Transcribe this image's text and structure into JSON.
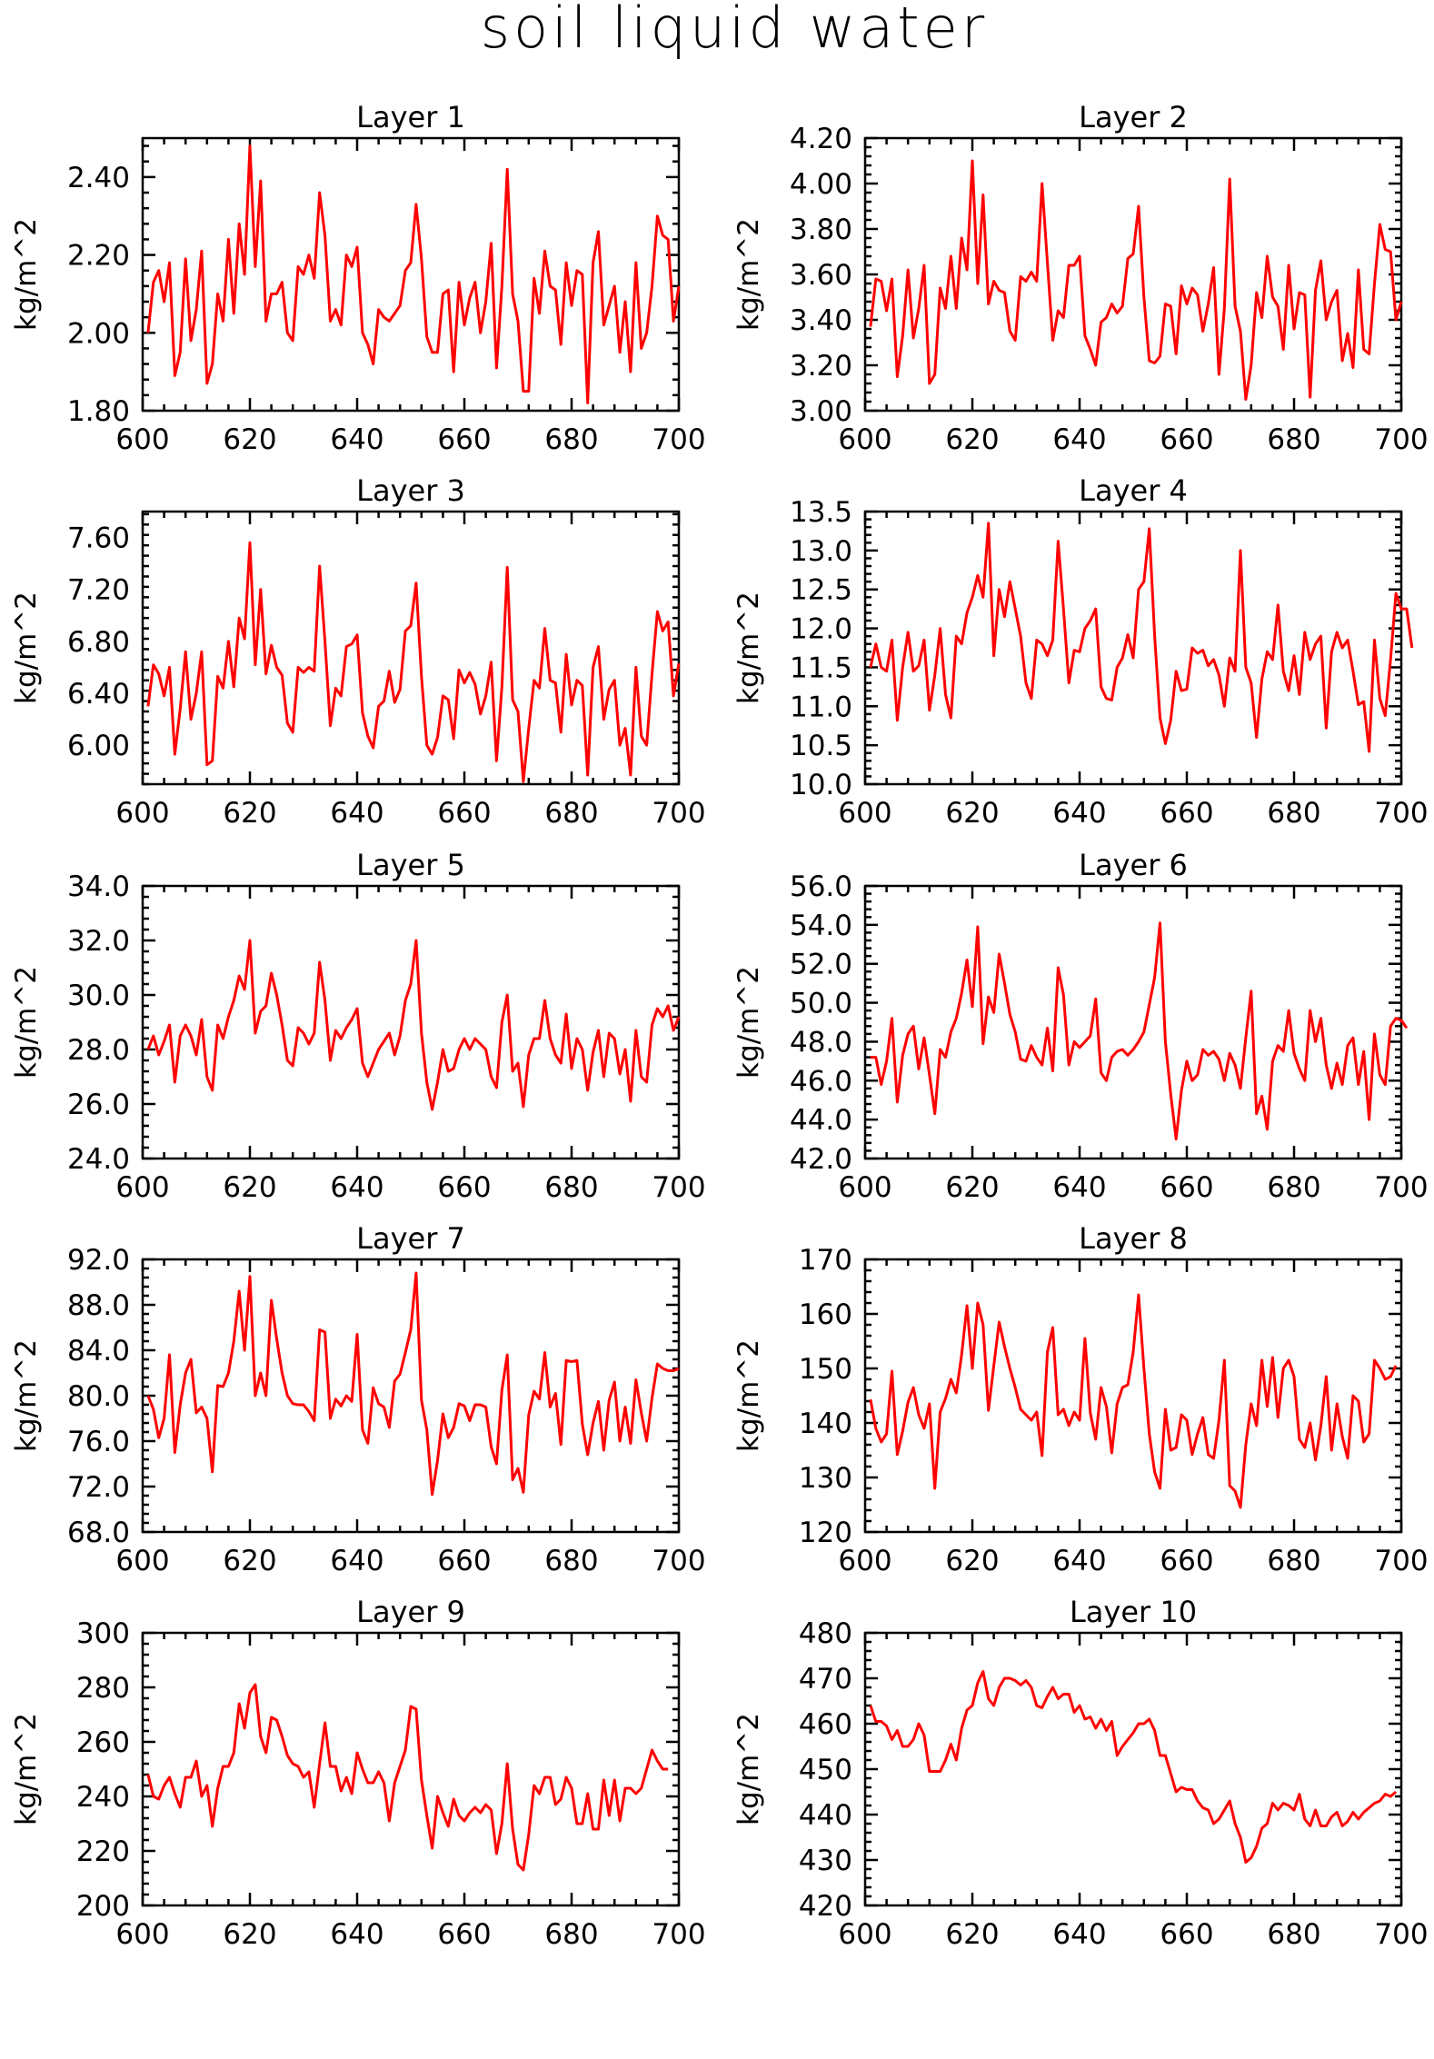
{
  "figure": {
    "title": "soil liquid water"
  },
  "chart_data": [
    {
      "type": "line",
      "title": "Layer 1",
      "ylabel": "kg/m^2",
      "xlim": [
        600,
        700
      ],
      "ylim": [
        1.8,
        2.5
      ],
      "xticks": [
        "600",
        "620",
        "640",
        "660",
        "680",
        "700"
      ],
      "yticks": [
        "1.80",
        "2.00",
        "2.20",
        "2.40"
      ],
      "grid": false,
      "series_color": "#ff0000",
      "x0": 601,
      "values": [
        2.0,
        2.13,
        2.16,
        2.08,
        2.18,
        1.89,
        1.95,
        2.19,
        1.98,
        2.06,
        2.21,
        1.87,
        1.92,
        2.1,
        2.03,
        2.24,
        2.05,
        2.28,
        2.15,
        2.48,
        2.17,
        2.39,
        2.03,
        2.1,
        2.1,
        2.13,
        2.0,
        1.98,
        2.17,
        2.15,
        2.2,
        2.14,
        2.36,
        2.25,
        2.03,
        2.06,
        2.02,
        2.2,
        2.17,
        2.22,
        2.0,
        1.97,
        1.92,
        2.06,
        2.04,
        2.03,
        2.05,
        2.07,
        2.16,
        2.18,
        2.33,
        2.19,
        1.99,
        1.95,
        1.95,
        2.1,
        2.11,
        1.9,
        2.13,
        2.02,
        2.09,
        2.13,
        2.0,
        2.08,
        2.23,
        1.91,
        2.12,
        2.42,
        2.1,
        2.03,
        1.85,
        1.85,
        2.14,
        2.05,
        2.21,
        2.12,
        2.11,
        1.97,
        2.18,
        2.07,
        2.16,
        2.15,
        1.82,
        2.18,
        2.26,
        2.02,
        2.07,
        2.12,
        1.95,
        2.08,
        1.9,
        2.18,
        1.96,
        2.0,
        2.12,
        2.3,
        2.25,
        2.24,
        2.03,
        2.12
      ]
    },
    {
      "type": "line",
      "title": "Layer 2",
      "ylabel": "kg/m^2",
      "xlim": [
        600,
        700
      ],
      "ylim": [
        3.0,
        4.2
      ],
      "xticks": [
        "600",
        "620",
        "640",
        "660",
        "680",
        "700"
      ],
      "yticks": [
        "3.00",
        "3.20",
        "3.40",
        "3.60",
        "3.80",
        "4.00",
        "4.20"
      ],
      "grid": false,
      "series_color": "#ff0000",
      "x0": 601,
      "values": [
        3.37,
        3.58,
        3.57,
        3.44,
        3.58,
        3.15,
        3.33,
        3.62,
        3.32,
        3.45,
        3.64,
        3.12,
        3.16,
        3.54,
        3.45,
        3.68,
        3.45,
        3.76,
        3.62,
        4.1,
        3.56,
        3.95,
        3.47,
        3.57,
        3.53,
        3.52,
        3.35,
        3.31,
        3.59,
        3.57,
        3.61,
        3.57,
        4.0,
        3.65,
        3.31,
        3.44,
        3.41,
        3.64,
        3.64,
        3.68,
        3.33,
        3.27,
        3.2,
        3.39,
        3.41,
        3.47,
        3.43,
        3.46,
        3.67,
        3.69,
        3.9,
        3.5,
        3.22,
        3.21,
        3.24,
        3.47,
        3.46,
        3.25,
        3.55,
        3.47,
        3.54,
        3.51,
        3.35,
        3.47,
        3.63,
        3.16,
        3.45,
        4.02,
        3.46,
        3.35,
        3.05,
        3.2,
        3.52,
        3.41,
        3.68,
        3.5,
        3.46,
        3.27,
        3.64,
        3.36,
        3.52,
        3.51,
        3.06,
        3.53,
        3.66,
        3.4,
        3.48,
        3.53,
        3.22,
        3.34,
        3.19,
        3.62,
        3.27,
        3.25,
        3.56,
        3.82,
        3.71,
        3.7,
        3.4,
        3.48
      ]
    },
    {
      "type": "line",
      "title": "Layer 3",
      "ylabel": "kg/m^2",
      "xlim": [
        600,
        700
      ],
      "ylim": [
        5.7,
        7.8
      ],
      "xticks": [
        "600",
        "620",
        "640",
        "660",
        "680",
        "700"
      ],
      "yticks": [
        "6.00",
        "6.40",
        "6.80",
        "7.20",
        "7.60"
      ],
      "grid": false,
      "series_color": "#ff0000",
      "x0": 601,
      "values": [
        6.3,
        6.62,
        6.55,
        6.38,
        6.6,
        5.93,
        6.28,
        6.72,
        6.2,
        6.4,
        6.72,
        5.85,
        5.88,
        6.53,
        6.44,
        6.8,
        6.45,
        6.98,
        6.82,
        7.56,
        6.62,
        7.2,
        6.55,
        6.77,
        6.6,
        6.54,
        6.17,
        6.1,
        6.6,
        6.56,
        6.6,
        6.57,
        7.38,
        6.8,
        6.15,
        6.44,
        6.38,
        6.76,
        6.78,
        6.85,
        6.25,
        6.07,
        5.98,
        6.3,
        6.34,
        6.57,
        6.33,
        6.43,
        6.88,
        6.92,
        7.25,
        6.53,
        6.0,
        5.93,
        6.06,
        6.38,
        6.35,
        6.05,
        6.58,
        6.48,
        6.56,
        6.47,
        6.24,
        6.38,
        6.64,
        5.88,
        6.45,
        7.37,
        6.35,
        6.26,
        5.72,
        6.13,
        6.5,
        6.44,
        6.9,
        6.5,
        6.48,
        6.1,
        6.7,
        6.31,
        6.5,
        6.46,
        5.77,
        6.6,
        6.76,
        6.2,
        6.43,
        6.5,
        6.0,
        6.13,
        5.77,
        6.6,
        6.07,
        6.0,
        6.55,
        7.03,
        6.88,
        6.95,
        6.38,
        6.63
      ]
    },
    {
      "type": "line",
      "title": "Layer 4",
      "ylabel": "kg/m^2",
      "xlim": [
        600,
        700
      ],
      "ylim": [
        10.0,
        13.5
      ],
      "xticks": [
        "600",
        "620",
        "640",
        "660",
        "680",
        "700"
      ],
      "yticks": [
        "10.0",
        "10.5",
        "11.0",
        "11.5",
        "12.0",
        "12.5",
        "13.0",
        "13.5"
      ],
      "grid": false,
      "series_color": "#ff0000",
      "x0": 601,
      "values": [
        11.5,
        11.8,
        11.5,
        11.45,
        11.85,
        10.82,
        11.5,
        11.95,
        11.45,
        11.52,
        11.85,
        10.95,
        11.4,
        12.0,
        11.15,
        10.85,
        11.9,
        11.8,
        12.2,
        12.4,
        12.68,
        12.4,
        13.35,
        11.65,
        12.5,
        12.15,
        12.6,
        12.25,
        11.9,
        11.3,
        11.1,
        11.85,
        11.8,
        11.65,
        11.85,
        13.12,
        12.25,
        11.3,
        11.72,
        11.7,
        12.0,
        12.1,
        12.25,
        11.25,
        11.1,
        11.08,
        11.5,
        11.62,
        11.92,
        11.62,
        12.5,
        12.6,
        13.28,
        11.9,
        10.85,
        10.52,
        10.82,
        11.45,
        11.2,
        11.22,
        11.75,
        11.68,
        11.72,
        11.52,
        11.6,
        11.4,
        11.0,
        11.62,
        11.45,
        13.0,
        11.5,
        11.3,
        10.6,
        11.35,
        11.7,
        11.6,
        12.3,
        11.45,
        11.2,
        11.65,
        11.15,
        11.95,
        11.6,
        11.8,
        11.9,
        10.72,
        11.7,
        11.95,
        11.75,
        11.85,
        11.45,
        11.02,
        11.06,
        10.42,
        11.85,
        11.1,
        10.88,
        11.6,
        12.45,
        12.25,
        12.25,
        11.75
      ]
    },
    {
      "type": "line",
      "title": "Layer 5",
      "ylabel": "kg/m^2",
      "xlim": [
        600,
        700
      ],
      "ylim": [
        24.0,
        34.0
      ],
      "xticks": [
        "600",
        "620",
        "640",
        "660",
        "680",
        "700"
      ],
      "yticks": [
        "24.0",
        "26.0",
        "28.0",
        "30.0",
        "32.0",
        "34.0"
      ],
      "grid": false,
      "series_color": "#ff0000",
      "x0": 601,
      "values": [
        28.0,
        28.5,
        27.8,
        28.3,
        28.9,
        26.8,
        28.5,
        28.9,
        28.5,
        27.8,
        29.1,
        27.0,
        26.5,
        28.9,
        28.4,
        29.2,
        29.8,
        30.7,
        30.2,
        32.0,
        28.6,
        29.4,
        29.6,
        30.8,
        30.0,
        28.9,
        27.6,
        27.4,
        28.8,
        28.6,
        28.2,
        28.6,
        31.2,
        29.8,
        27.6,
        28.7,
        28.4,
        28.8,
        29.1,
        29.5,
        27.5,
        27.0,
        27.5,
        28.0,
        28.3,
        28.6,
        27.8,
        28.5,
        29.8,
        30.4,
        32.0,
        28.6,
        26.8,
        25.8,
        26.8,
        28.0,
        27.2,
        27.3,
        28.0,
        28.4,
        28.0,
        28.4,
        28.2,
        28.0,
        27.0,
        26.6,
        29.0,
        30.0,
        27.2,
        27.5,
        25.9,
        27.8,
        28.4,
        28.4,
        29.8,
        28.4,
        27.8,
        27.5,
        29.3,
        27.3,
        28.4,
        28.0,
        26.5,
        27.9,
        28.7,
        27.0,
        28.6,
        28.4,
        27.1,
        28.0,
        26.1,
        28.7,
        27.0,
        26.8,
        28.9,
        29.5,
        29.2,
        29.6,
        28.7,
        29.2
      ]
    },
    {
      "type": "line",
      "title": "Layer 6",
      "ylabel": "kg/m^2",
      "xlim": [
        600,
        700
      ],
      "ylim": [
        42.0,
        56.0
      ],
      "xticks": [
        "600",
        "620",
        "640",
        "660",
        "680",
        "700"
      ],
      "yticks": [
        "42.0",
        "44.0",
        "46.0",
        "48.0",
        "50.0",
        "52.0",
        "54.0",
        "56.0"
      ],
      "grid": false,
      "series_color": "#ff0000",
      "x0": 601,
      "values": [
        47.2,
        47.2,
        45.8,
        47.0,
        49.2,
        44.9,
        47.3,
        48.4,
        48.8,
        46.6,
        48.2,
        46.3,
        44.3,
        47.6,
        47.2,
        48.5,
        49.2,
        50.5,
        52.2,
        49.8,
        53.9,
        47.9,
        50.3,
        49.5,
        52.5,
        51.0,
        49.4,
        48.5,
        47.1,
        47.0,
        47.8,
        47.2,
        46.8,
        48.7,
        46.5,
        51.8,
        50.4,
        46.8,
        48.0,
        47.7,
        48.0,
        48.3,
        50.2,
        46.4,
        46.0,
        47.2,
        47.5,
        47.6,
        47.3,
        47.6,
        48.0,
        48.5,
        49.9,
        51.3,
        54.1,
        48.0,
        45.3,
        43.0,
        45.5,
        47.0,
        46.0,
        46.3,
        47.6,
        47.3,
        47.5,
        47.1,
        46.0,
        47.4,
        46.8,
        45.6,
        48.2,
        50.6,
        44.3,
        45.2,
        43.5,
        47.0,
        47.8,
        47.5,
        49.6,
        47.4,
        46.6,
        46.0,
        49.6,
        48.0,
        49.2,
        46.8,
        45.6,
        46.9,
        45.8,
        47.8,
        48.2,
        45.8,
        47.5,
        44.0,
        48.4,
        46.3,
        45.8,
        48.8,
        49.2,
        49.1,
        48.7
      ]
    },
    {
      "type": "line",
      "title": "Layer 7",
      "ylabel": "kg/m^2",
      "xlim": [
        600,
        700
      ],
      "ylim": [
        68.0,
        92.0
      ],
      "xticks": [
        "600",
        "620",
        "640",
        "660",
        "680",
        "700"
      ],
      "yticks": [
        "68.0",
        "72.0",
        "76.0",
        "80.0",
        "84.0",
        "88.0",
        "92.0"
      ],
      "grid": false,
      "series_color": "#ff0000",
      "x0": 601,
      "values": [
        80.0,
        78.8,
        76.3,
        78.0,
        83.6,
        75.0,
        79.2,
        82.0,
        83.2,
        78.5,
        79.0,
        78.0,
        73.3,
        80.9,
        80.8,
        82.0,
        84.8,
        89.2,
        84.0,
        90.5,
        80.0,
        82.0,
        80.0,
        88.4,
        85.0,
        82.0,
        80.0,
        79.3,
        79.2,
        79.2,
        78.6,
        77.8,
        85.8,
        85.6,
        78.0,
        79.7,
        79.1,
        80.0,
        79.5,
        85.4,
        77.0,
        75.8,
        80.7,
        79.3,
        79.0,
        77.2,
        81.3,
        81.9,
        83.8,
        85.8,
        90.8,
        79.6,
        77.0,
        71.3,
        74.3,
        78.4,
        76.3,
        77.2,
        79.3,
        79.1,
        77.8,
        79.2,
        79.2,
        79.0,
        75.5,
        74.0,
        80.5,
        83.6,
        72.6,
        73.6,
        71.5,
        78.3,
        80.4,
        79.7,
        83.8,
        79.0,
        80.2,
        75.7,
        83.1,
        83.0,
        83.1,
        77.5,
        74.8,
        77.6,
        79.5,
        75.2,
        79.6,
        81.2,
        76.0,
        79.0,
        75.8,
        81.4,
        78.5,
        76.0,
        79.8,
        82.8,
        82.4,
        82.2,
        82.2,
        82.4
      ]
    },
    {
      "type": "line",
      "title": "Layer 8",
      "ylabel": "kg/m^2",
      "xlim": [
        600,
        700
      ],
      "ylim": [
        120,
        170
      ],
      "xticks": [
        "600",
        "620",
        "640",
        "660",
        "680",
        "700"
      ],
      "yticks": [
        "120",
        "130",
        "140",
        "150",
        "160",
        "170"
      ],
      "grid": false,
      "series_color": "#ff0000",
      "x0": 601,
      "values": [
        144.3,
        139.0,
        136.5,
        138.0,
        149.5,
        134.2,
        138.5,
        143.8,
        146.5,
        141.5,
        139.0,
        143.5,
        128.0,
        142.0,
        144.5,
        148.0,
        145.5,
        152.5,
        161.5,
        150.0,
        162.0,
        158.0,
        142.3,
        150.5,
        158.5,
        154.0,
        150.0,
        146.5,
        142.5,
        141.5,
        140.5,
        142.0,
        134.0,
        153.0,
        157.5,
        141.5,
        142.5,
        139.5,
        142.0,
        140.5,
        155.5,
        141.8,
        137.0,
        146.5,
        143.0,
        134.5,
        143.5,
        146.5,
        147.0,
        153.0,
        163.5,
        150.0,
        138.0,
        131.0,
        128.0,
        142.5,
        135.0,
        135.5,
        141.5,
        140.5,
        134.2,
        138.0,
        141.0,
        134.2,
        133.5,
        140.5,
        151.5,
        128.5,
        127.5,
        124.5,
        136.0,
        143.5,
        139.5,
        151.5,
        143.0,
        152.0,
        141.0,
        150.0,
        151.5,
        148.5,
        137.0,
        135.5,
        140.0,
        133.2,
        139.5,
        148.5,
        135.0,
        143.5,
        137.5,
        133.5,
        145.0,
        144.0,
        136.5,
        138.0,
        151.5,
        150.0,
        148.0,
        148.5,
        150.5
      ]
    },
    {
      "type": "line",
      "title": "Layer 9",
      "ylabel": "kg/m^2",
      "xlim": [
        600,
        700
      ],
      "ylim": [
        200,
        300
      ],
      "xticks": [
        "600",
        "620",
        "640",
        "660",
        "680",
        "700"
      ],
      "yticks": [
        "200",
        "220",
        "240",
        "260",
        "280",
        "300"
      ],
      "grid": false,
      "series_color": "#ff0000",
      "x0": 601,
      "values": [
        248,
        240,
        239,
        244,
        247,
        241,
        236,
        247,
        247,
        253,
        240,
        244,
        229,
        243,
        251,
        251,
        256,
        274,
        265,
        278,
        281,
        262,
        256,
        269,
        268,
        262,
        255,
        252,
        251,
        247,
        249,
        236,
        252,
        267,
        251,
        251,
        242,
        247,
        241,
        256,
        250,
        245,
        245,
        249,
        245,
        231,
        245,
        251,
        257,
        273,
        272,
        246,
        233,
        221,
        240,
        234,
        229,
        239,
        233,
        231,
        234,
        236,
        234,
        237,
        235,
        219,
        230,
        252,
        228,
        215,
        213,
        226,
        244,
        241,
        247,
        247,
        237,
        239,
        247,
        243,
        230,
        230,
        241,
        228,
        228,
        246,
        233,
        246,
        231,
        243,
        243,
        241,
        243,
        250,
        257,
        253,
        250,
        250
      ]
    },
    {
      "type": "line",
      "title": "Layer 10",
      "ylabel": "kg/m^2",
      "xlim": [
        600,
        700
      ],
      "ylim": [
        420,
        480
      ],
      "xticks": [
        "600",
        "620",
        "640",
        "660",
        "680",
        "700"
      ],
      "yticks": [
        "420",
        "430",
        "440",
        "450",
        "460",
        "470",
        "480"
      ],
      "grid": false,
      "series_color": "#ff0000",
      "x0": 601,
      "values": [
        464,
        460.5,
        460.5,
        459.5,
        456.5,
        458.5,
        455,
        455,
        456.5,
        460,
        457.5,
        449.5,
        449.5,
        449.5,
        452,
        455.5,
        452,
        459,
        463,
        464,
        469,
        471.5,
        465.5,
        464,
        468,
        470,
        470,
        469.5,
        468.5,
        469.5,
        468,
        464,
        463.5,
        466,
        468,
        465.5,
        466.5,
        466.5,
        462.5,
        464,
        461,
        461.5,
        459,
        461,
        458.5,
        460.5,
        453,
        455,
        456.5,
        458,
        460,
        460,
        461,
        458.5,
        453,
        453,
        449,
        445,
        446,
        445.5,
        445.5,
        443,
        441.5,
        441,
        438,
        439,
        441,
        443,
        438,
        435,
        429.5,
        430.5,
        433,
        437,
        438,
        442.5,
        441,
        442.5,
        442,
        441,
        444.5,
        439,
        437.5,
        441,
        437.5,
        437.5,
        439.5,
        440.5,
        437.5,
        438.5,
        440.5,
        439,
        440.5,
        441.5,
        442.5,
        443,
        444.5,
        444,
        445
      ]
    }
  ]
}
